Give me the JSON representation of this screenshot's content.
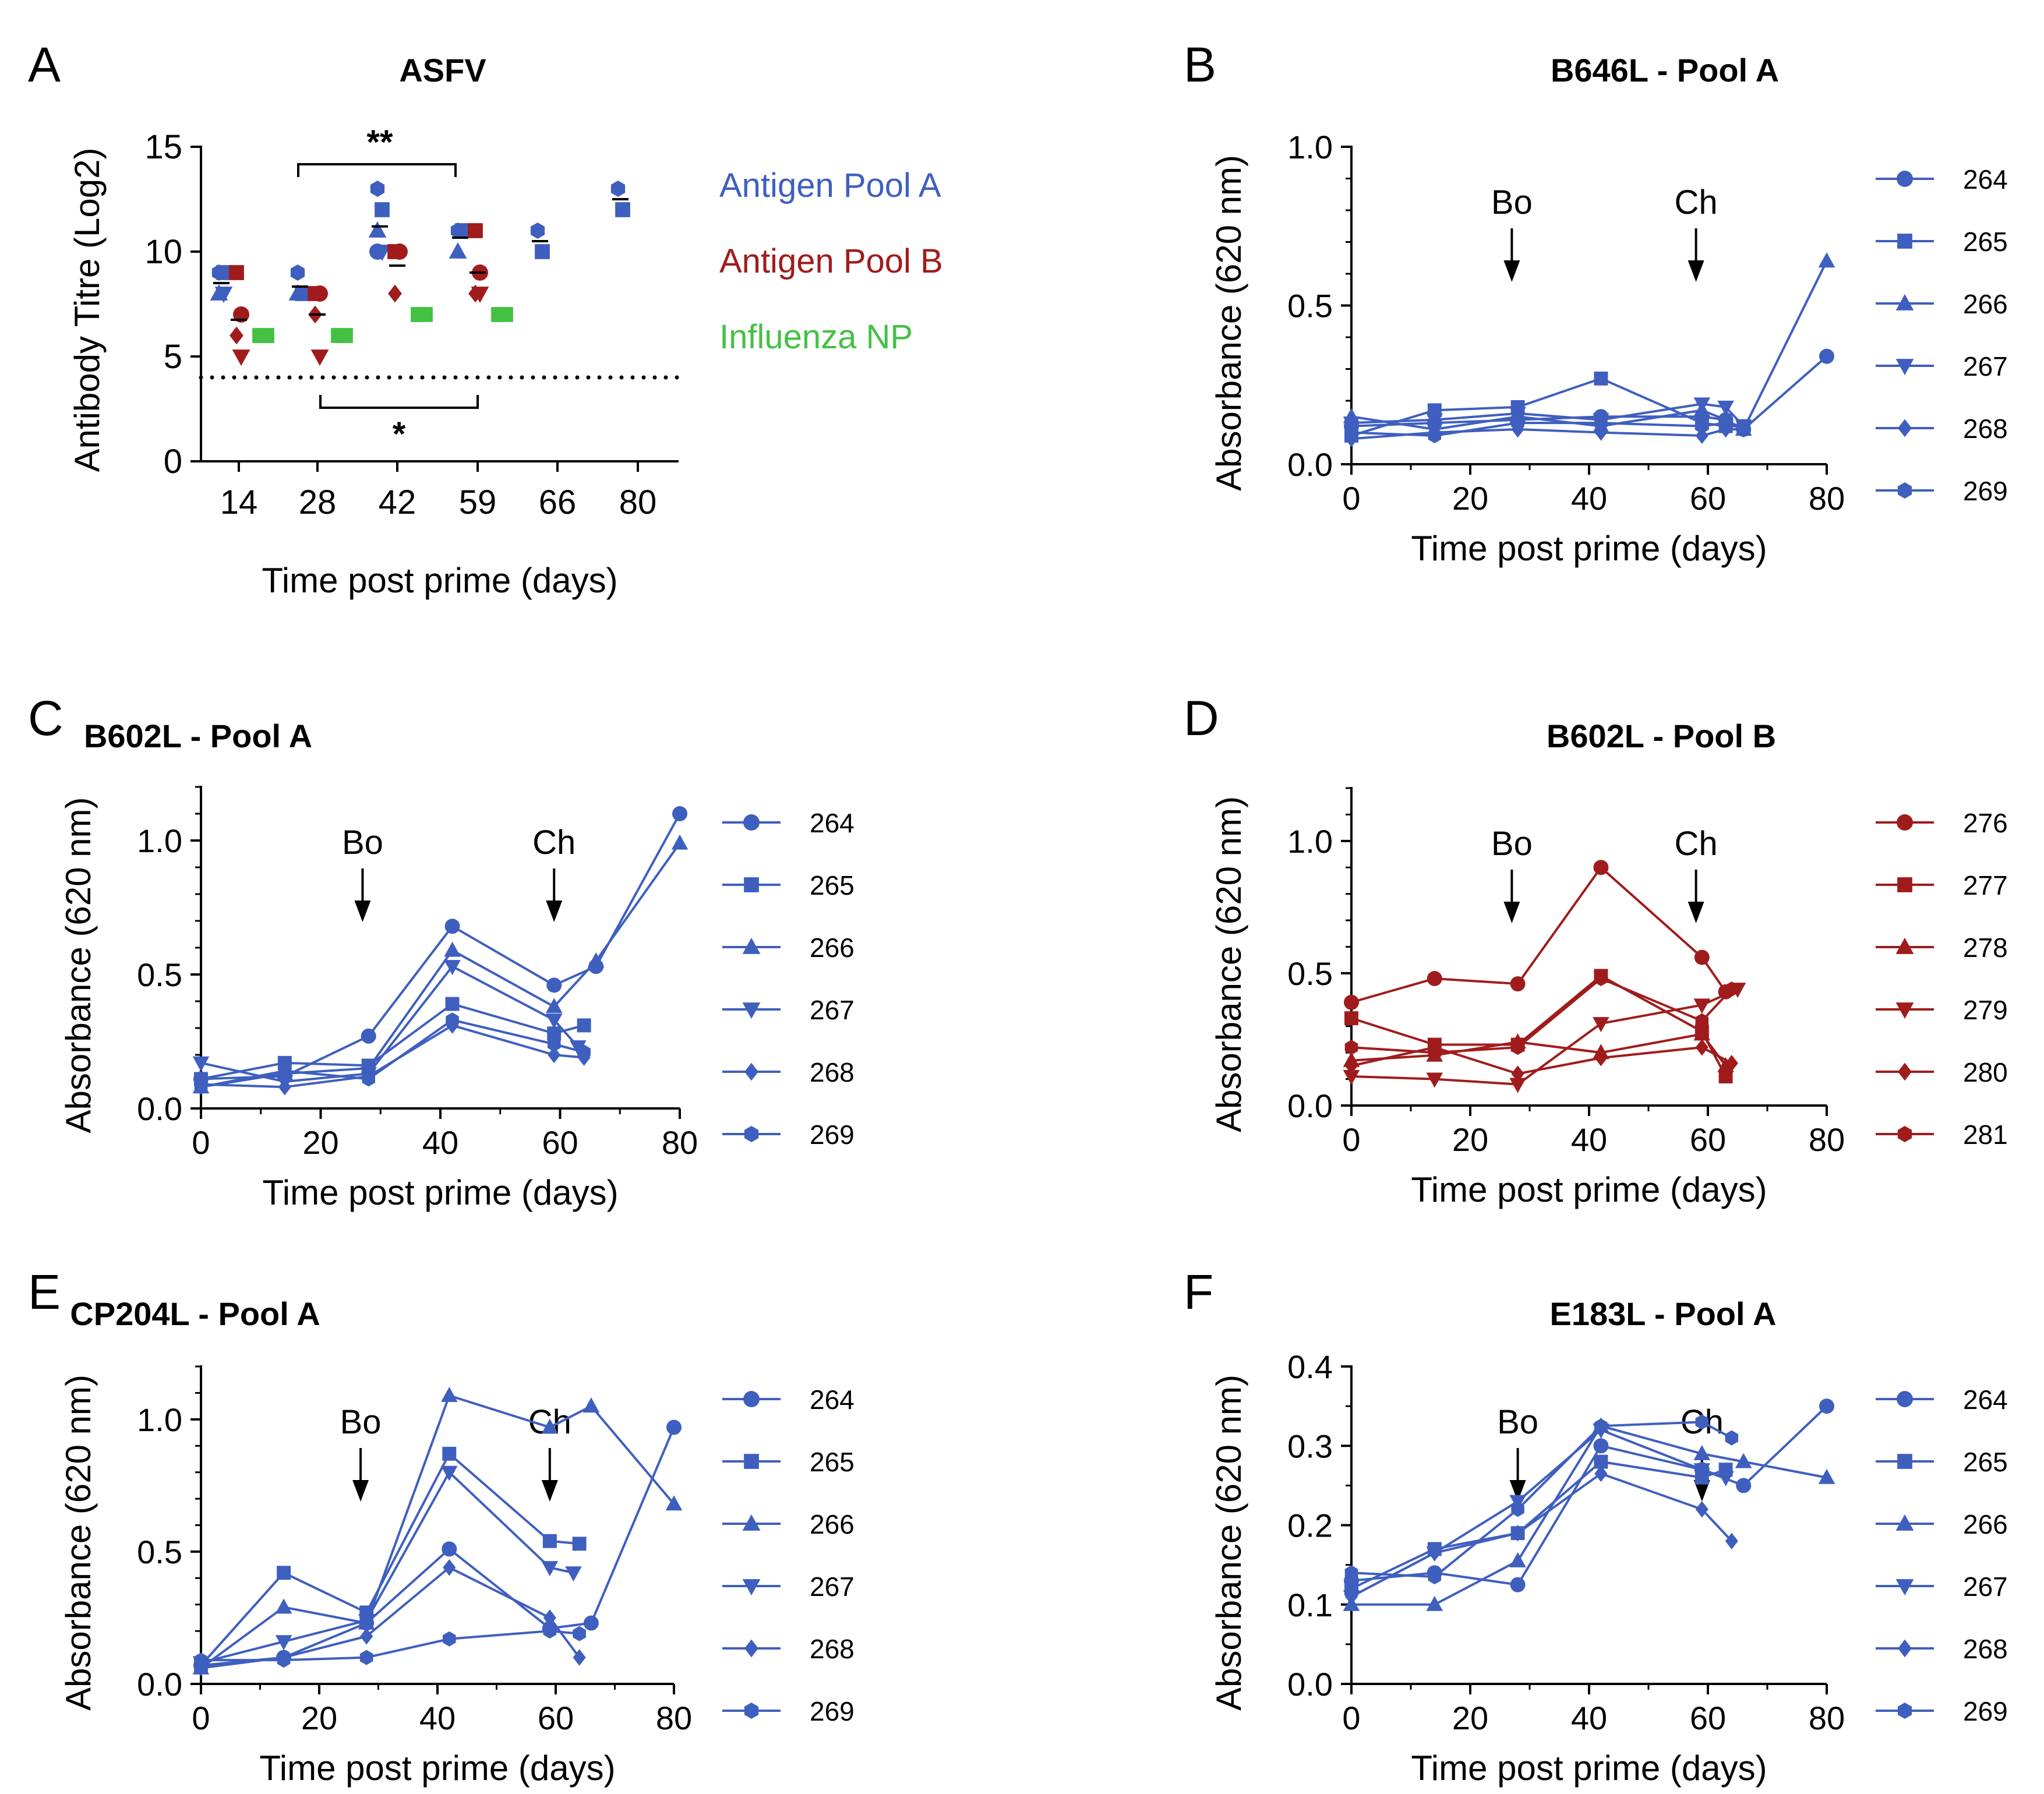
{
  "colors": {
    "blue": "#3f5fbf",
    "red": "#a01c1c",
    "green": "#44c144",
    "black": "#000000"
  },
  "panels": [
    {
      "id": "A",
      "letter": "A",
      "title": "ASFV"
    },
    {
      "id": "B",
      "letter": "B",
      "title": "B646L - Pool A"
    },
    {
      "id": "C",
      "letter": "C",
      "title": "B602L - Pool A"
    },
    {
      "id": "D",
      "letter": "D",
      "title": "B602L - Pool B"
    },
    {
      "id": "E",
      "letter": "E",
      "title": "CP204L - Pool A"
    },
    {
      "id": "F",
      "letter": "F",
      "title": "E183L - Pool A"
    }
  ],
  "chart_data": [
    {
      "panel": "A",
      "type": "scatter",
      "title": "ASFV",
      "xlabel": "Time post prime (days)",
      "ylabel": "Antibody Titre (Log2)",
      "ylim": [
        0,
        15
      ],
      "yticks": [
        0,
        5,
        10,
        15
      ],
      "categories": [
        "14",
        "28",
        "42",
        "59",
        "66",
        "80"
      ],
      "dotted_line_y": 4,
      "groups": [
        {
          "name": "Antigen Pool A",
          "color": "blue"
        },
        {
          "name": "Antigen Pool B",
          "color": "red"
        },
        {
          "name": "Influenza NP",
          "color": "green"
        }
      ],
      "series": [
        {
          "group": "Antigen Pool A",
          "category": "14",
          "values": [
            9,
            9,
            8,
            8
          ]
        },
        {
          "group": "Antigen Pool B",
          "category": "14",
          "values": [
            9,
            7,
            6,
            5
          ]
        },
        {
          "group": "Influenza NP",
          "category": "14",
          "values": [
            6,
            6
          ]
        },
        {
          "group": "Antigen Pool A",
          "category": "28",
          "values": [
            9,
            8,
            8
          ]
        },
        {
          "group": "Antigen Pool B",
          "category": "28",
          "values": [
            8,
            8,
            7,
            5
          ]
        },
        {
          "group": "Influenza NP",
          "category": "28",
          "values": [
            6,
            6
          ]
        },
        {
          "group": "Antigen Pool A",
          "category": "42",
          "values": [
            13,
            12,
            11,
            10,
            10
          ]
        },
        {
          "group": "Antigen Pool B",
          "category": "42",
          "values": [
            10,
            10,
            8
          ]
        },
        {
          "group": "Influenza NP",
          "category": "42",
          "values": [
            7,
            7
          ]
        },
        {
          "group": "Antigen Pool A",
          "category": "59",
          "values": [
            11,
            11,
            10
          ]
        },
        {
          "group": "Antigen Pool B",
          "category": "59",
          "values": [
            11,
            9,
            8,
            8
          ]
        },
        {
          "group": "Influenza NP",
          "category": "59",
          "values": [
            7,
            7
          ]
        },
        {
          "group": "Antigen Pool A",
          "category": "66",
          "values": [
            11,
            10
          ]
        },
        {
          "group": "Antigen Pool A",
          "category": "80",
          "values": [
            13,
            12
          ]
        }
      ],
      "significance": [
        {
          "label": "**",
          "from": "28",
          "to": "59"
        },
        {
          "label": "*",
          "from": "28",
          "to": "59"
        }
      ]
    },
    {
      "panel": "B",
      "type": "line",
      "title": "B646L - Pool A",
      "xlabel": "Time post prime (days)",
      "ylabel": "Absorbance (620 nm)",
      "xlim": [
        0,
        80
      ],
      "ylim": [
        0,
        1.0
      ],
      "xticks": [
        0,
        20,
        40,
        60,
        80
      ],
      "yticks": [
        0.0,
        0.5,
        1.0
      ],
      "ytick_labels": [
        "0.0",
        "0.5",
        "1.0"
      ],
      "color": "blue",
      "annotations": [
        {
          "label": "Bo",
          "x": 27
        },
        {
          "label": "Ch",
          "x": 58
        }
      ],
      "series": [
        {
          "name": "264",
          "marker": "circle",
          "x": [
            0,
            14,
            28,
            42,
            59,
            63,
            66,
            80
          ],
          "y": [
            0.12,
            0.13,
            0.14,
            0.15,
            0.15,
            0.14,
            0.11,
            0.34
          ]
        },
        {
          "name": "265",
          "marker": "square",
          "x": [
            0,
            14,
            28,
            42,
            59,
            63,
            66
          ],
          "y": [
            0.09,
            0.17,
            0.18,
            0.27,
            0.13,
            0.12,
            0.12
          ]
        },
        {
          "name": "266",
          "marker": "triangle-up",
          "x": [
            0,
            14,
            28,
            42,
            59,
            63,
            66,
            80
          ],
          "y": [
            0.15,
            0.11,
            0.15,
            0.12,
            0.17,
            0.14,
            0.11,
            0.64
          ]
        },
        {
          "name": "267",
          "marker": "triangle-down",
          "x": [
            0,
            14,
            28,
            42,
            59,
            63,
            66
          ],
          "y": [
            0.13,
            0.14,
            0.16,
            0.14,
            0.19,
            0.18,
            0.12
          ]
        },
        {
          "name": "268",
          "marker": "diamond",
          "x": [
            0,
            14,
            28,
            42,
            59,
            63,
            66
          ],
          "y": [
            0.08,
            0.1,
            0.11,
            0.1,
            0.09,
            0.11,
            0.11
          ]
        },
        {
          "name": "269",
          "marker": "hexagon",
          "x": [
            0,
            14,
            28,
            42,
            59,
            63,
            66
          ],
          "y": [
            0.1,
            0.09,
            0.13,
            0.13,
            0.12,
            0.13,
            0.11
          ]
        }
      ]
    },
    {
      "panel": "C",
      "type": "line",
      "title": "B602L - Pool A",
      "xlabel": "Time post prime (days)",
      "ylabel": "Absorbance (620 nm)",
      "xlim": [
        0,
        80
      ],
      "ylim": [
        0,
        1.2
      ],
      "xticks": [
        0,
        20,
        40,
        60,
        80
      ],
      "yticks": [
        0.0,
        0.5,
        1.0
      ],
      "ytick_labels": [
        "0.0",
        "0.5",
        "1.0"
      ],
      "color": "blue",
      "annotations": [
        {
          "label": "Bo",
          "x": 27
        },
        {
          "label": "Ch",
          "x": 59
        }
      ],
      "series": [
        {
          "name": "264",
          "marker": "circle",
          "x": [
            0,
            14,
            28,
            42,
            59,
            66,
            80
          ],
          "y": [
            0.11,
            0.12,
            0.27,
            0.68,
            0.46,
            0.53,
            1.1
          ]
        },
        {
          "name": "265",
          "marker": "square",
          "x": [
            0,
            14,
            28,
            42,
            59,
            64
          ],
          "y": [
            0.11,
            0.17,
            0.16,
            0.39,
            0.28,
            0.31
          ]
        },
        {
          "name": "266",
          "marker": "triangle-up",
          "x": [
            0,
            14,
            28,
            42,
            59,
            66,
            80
          ],
          "y": [
            0.08,
            0.13,
            0.15,
            0.59,
            0.38,
            0.55,
            0.99
          ]
        },
        {
          "name": "267",
          "marker": "triangle-down",
          "x": [
            0,
            14,
            28,
            42,
            59,
            63
          ],
          "y": [
            0.17,
            0.1,
            0.13,
            0.53,
            0.33,
            0.23
          ]
        },
        {
          "name": "268",
          "marker": "diamond",
          "x": [
            0,
            14,
            28,
            42,
            59,
            64
          ],
          "y": [
            0.09,
            0.08,
            0.12,
            0.31,
            0.2,
            0.19
          ]
        },
        {
          "name": "269",
          "marker": "hexagon",
          "x": [
            0,
            14,
            28,
            42,
            59,
            64
          ],
          "y": [
            0.08,
            0.14,
            0.11,
            0.33,
            0.24,
            0.21
          ]
        }
      ]
    },
    {
      "panel": "D",
      "type": "line",
      "title": "B602L - Pool B",
      "xlabel": "Time post prime (days)",
      "ylabel": "Absorbance (620 nm)",
      "xlim": [
        0,
        80
      ],
      "ylim": [
        0,
        1.2
      ],
      "xticks": [
        0,
        20,
        40,
        60,
        80
      ],
      "yticks": [
        0.0,
        0.5,
        1.0
      ],
      "ytick_labels": [
        "0.0",
        "0.5",
        "1.0"
      ],
      "color": "red",
      "annotations": [
        {
          "label": "Bo",
          "x": 27
        },
        {
          "label": "Ch",
          "x": 58
        }
      ],
      "series": [
        {
          "name": "276",
          "marker": "circle",
          "x": [
            0,
            14,
            28,
            42,
            59,
            63
          ],
          "y": [
            0.39,
            0.48,
            0.46,
            0.9,
            0.56,
            0.43
          ]
        },
        {
          "name": "277",
          "marker": "square",
          "x": [
            0,
            14,
            28,
            42,
            59,
            63
          ],
          "y": [
            0.33,
            0.23,
            0.23,
            0.49,
            0.28,
            0.11
          ]
        },
        {
          "name": "278",
          "marker": "triangle-up",
          "x": [
            0,
            14,
            28,
            42,
            59,
            63
          ],
          "y": [
            0.17,
            0.19,
            0.24,
            0.2,
            0.27,
            0.15
          ]
        },
        {
          "name": "279",
          "marker": "triangle-down",
          "x": [
            0,
            14,
            28,
            42,
            59,
            65
          ],
          "y": [
            0.11,
            0.1,
            0.08,
            0.31,
            0.38,
            0.44
          ]
        },
        {
          "name": "280",
          "marker": "diamond",
          "x": [
            0,
            14,
            28,
            42,
            59,
            64
          ],
          "y": [
            0.15,
            0.22,
            0.12,
            0.18,
            0.22,
            0.16
          ]
        },
        {
          "name": "281",
          "marker": "hexagon",
          "x": [
            0,
            14,
            28,
            42,
            59,
            64
          ],
          "y": [
            0.22,
            0.2,
            0.22,
            0.48,
            0.32,
            0.44
          ]
        }
      ]
    },
    {
      "panel": "E",
      "type": "line",
      "title": "CP204L - Pool A",
      "xlabel": "Time post prime (days)",
      "ylabel": "Absorbance (620 nm)",
      "xlim": [
        0,
        80
      ],
      "ylim": [
        0,
        1.2
      ],
      "xticks": [
        0,
        20,
        40,
        60,
        80
      ],
      "yticks": [
        0.0,
        0.5,
        1.0
      ],
      "ytick_labels": [
        "0.0",
        "0.5",
        "1.0"
      ],
      "color": "blue",
      "annotations": [
        {
          "label": "Bo",
          "x": 27
        },
        {
          "label": "Ch",
          "x": 59
        }
      ],
      "series": [
        {
          "name": "264",
          "marker": "circle",
          "x": [
            0,
            14,
            28,
            42,
            59,
            66,
            80
          ],
          "y": [
            0.07,
            0.1,
            0.23,
            0.51,
            0.21,
            0.23,
            0.97
          ]
        },
        {
          "name": "265",
          "marker": "square",
          "x": [
            0,
            14,
            28,
            42,
            59,
            64
          ],
          "y": [
            0.07,
            0.42,
            0.27,
            0.87,
            0.54,
            0.53
          ]
        },
        {
          "name": "266",
          "marker": "triangle-up",
          "x": [
            0,
            14,
            28,
            42,
            59,
            66,
            80
          ],
          "y": [
            0.06,
            0.29,
            0.23,
            1.09,
            0.97,
            1.05,
            0.68
          ]
        },
        {
          "name": "267",
          "marker": "triangle-down",
          "x": [
            0,
            14,
            28,
            42,
            59,
            63
          ],
          "y": [
            0.08,
            0.16,
            0.24,
            0.8,
            0.44,
            0.42
          ]
        },
        {
          "name": "268",
          "marker": "diamond",
          "x": [
            0,
            14,
            28,
            42,
            59,
            64
          ],
          "y": [
            0.06,
            0.1,
            0.18,
            0.44,
            0.25,
            0.1
          ]
        },
        {
          "name": "269",
          "marker": "hexagon",
          "x": [
            0,
            14,
            28,
            42,
            59,
            64
          ],
          "y": [
            0.09,
            0.09,
            0.1,
            0.17,
            0.2,
            0.19
          ]
        }
      ]
    },
    {
      "panel": "F",
      "type": "line",
      "title": "E183L - Pool A",
      "xlabel": "Time post prime (days)",
      "ylabel": "Absorbance (620 nm)",
      "xlim": [
        0,
        80
      ],
      "ylim": [
        0,
        0.4
      ],
      "xticks": [
        0,
        20,
        40,
        60,
        80
      ],
      "yticks": [
        0.0,
        0.1,
        0.2,
        0.3,
        0.4
      ],
      "ytick_labels": [
        "0.0",
        "0.1",
        "0.2",
        "0.3",
        "0.4"
      ],
      "color": "blue",
      "annotations": [
        {
          "label": "Bo",
          "x": 28
        },
        {
          "label": "Ch",
          "x": 59
        }
      ],
      "series": [
        {
          "name": "264",
          "marker": "circle",
          "x": [
            0,
            14,
            28,
            42,
            59,
            66,
            80
          ],
          "y": [
            0.13,
            0.14,
            0.125,
            0.3,
            0.27,
            0.25,
            0.35
          ]
        },
        {
          "name": "265",
          "marker": "square",
          "x": [
            0,
            14,
            28,
            42,
            59,
            63
          ],
          "y": [
            0.12,
            0.17,
            0.19,
            0.28,
            0.26,
            0.27
          ]
        },
        {
          "name": "266",
          "marker": "triangle-up",
          "x": [
            0,
            14,
            28,
            42,
            59,
            66,
            80
          ],
          "y": [
            0.1,
            0.1,
            0.155,
            0.325,
            0.29,
            0.28,
            0.26
          ]
        },
        {
          "name": "267",
          "marker": "triangle-down",
          "x": [
            0,
            14,
            28,
            42,
            59,
            63
          ],
          "y": [
            0.11,
            0.165,
            0.23,
            0.32,
            0.27,
            0.26
          ]
        },
        {
          "name": "268",
          "marker": "diamond",
          "x": [
            0,
            14,
            28,
            42,
            59,
            64
          ],
          "y": [
            0.11,
            0.165,
            0.19,
            0.265,
            0.22,
            0.18
          ]
        },
        {
          "name": "269",
          "marker": "hexagon",
          "x": [
            0,
            14,
            28,
            42,
            59,
            64
          ],
          "y": [
            0.14,
            0.135,
            0.22,
            0.325,
            0.33,
            0.31
          ]
        }
      ]
    }
  ]
}
